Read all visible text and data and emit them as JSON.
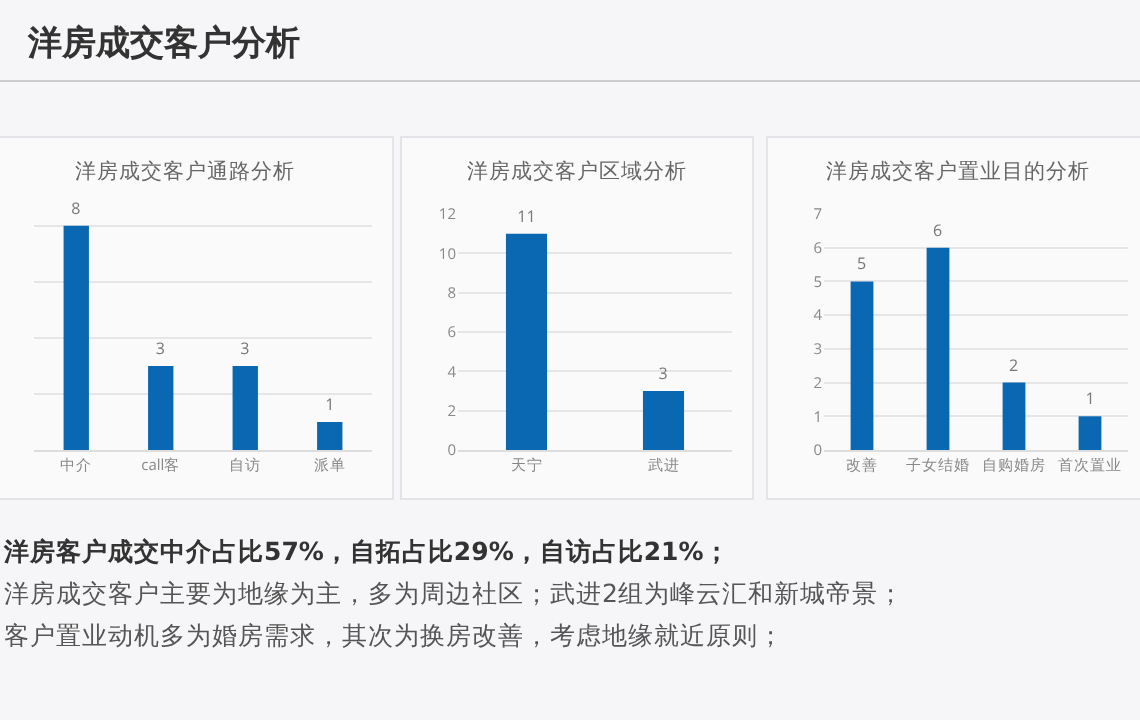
{
  "chart_data": [
    {
      "type": "bar",
      "title": "洋房成交客户通路分析",
      "categories": [
        "中介",
        "call客",
        "自访",
        "派单"
      ],
      "values": [
        8,
        3,
        3,
        1
      ],
      "color": "#0a67b2",
      "tick_labels": "x",
      "grid": "y",
      "data_labels": true
    },
    {
      "type": "bar",
      "title": "洋房成交客户区域分析",
      "categories": [
        "天宁",
        "武进"
      ],
      "values": [
        11,
        3
      ],
      "color": "#0a67b2",
      "ylim": [
        0,
        12
      ],
      "yticks": [
        0,
        2,
        4,
        6,
        8,
        10,
        12
      ],
      "grid": "y",
      "data_labels": true
    },
    {
      "type": "bar",
      "title": "洋房成交客户置业目的分析",
      "categories": [
        "改善",
        "子女结婚",
        "自购婚房",
        "首次置业"
      ],
      "values": [
        5,
        6,
        2,
        1
      ],
      "color": "#0a67b2",
      "ylim": [
        0,
        7
      ],
      "yticks": [
        0,
        1,
        2,
        3,
        4,
        5,
        6,
        7
      ],
      "grid": "y",
      "data_labels": true
    },
    {
      "type": "other",
      "title": "洋房成交客户分析",
      "annotations": [
        "洋房客户成交中介占比57%，自拓占比29%，自访占比21%；",
        "洋房成交客户主要为地缘为主，多为周边社区；武进2组为峰云汇和新城帝景；",
        "客户置业动机多为婚房需求，其次为换房改善，考虑地缘就近原则；"
      ]
    }
  ]
}
